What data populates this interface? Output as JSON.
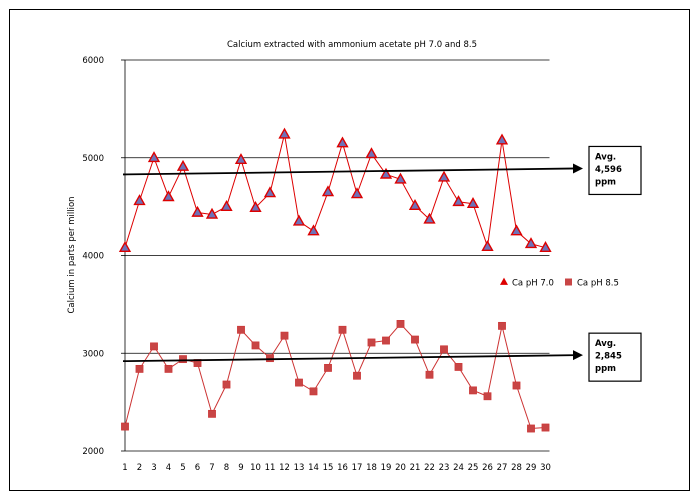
{
  "chart_data": {
    "type": "line",
    "title": "Calcium  extracted with ammonium acetate pH 7.0 and 8.5",
    "xlabel": "",
    "ylabel": "Calcium in parts per million",
    "ylim": [
      2000,
      6000
    ],
    "yticks": [
      2000,
      3000,
      4000,
      5000,
      6000
    ],
    "grid": "horizontal",
    "legend": "right",
    "x": [
      1,
      2,
      3,
      4,
      5,
      6,
      7,
      8,
      9,
      10,
      11,
      12,
      13,
      14,
      15,
      16,
      17,
      18,
      19,
      20,
      21,
      22,
      23,
      24,
      25,
      26,
      27,
      28,
      29,
      30
    ],
    "series": [
      {
        "name": "Ca pH 7.0",
        "marker": "triangle",
        "color": "#dd0000",
        "marker_fill": "#6e72b8",
        "values": [
          4080,
          4560,
          5000,
          4600,
          4910,
          4440,
          4420,
          4500,
          4980,
          4490,
          4640,
          5240,
          4350,
          4250,
          4650,
          5150,
          4630,
          5040,
          4830,
          4780,
          4510,
          4370,
          4800,
          4550,
          4530,
          4090,
          5180,
          4250,
          4120,
          4080
        ]
      },
      {
        "name": "Ca pH 8.5",
        "marker": "square",
        "color": "#cc3333",
        "marker_fill": "#c84545",
        "values": [
          2250,
          2840,
          3070,
          2840,
          2940,
          2900,
          2380,
          2680,
          3240,
          3080,
          2950,
          3180,
          2700,
          2610,
          2850,
          3240,
          2770,
          3110,
          3130,
          3300,
          3140,
          2780,
          3040,
          2860,
          2620,
          2560,
          3280,
          2670,
          2230,
          2240
        ]
      }
    ],
    "annotations": [
      {
        "name": "avg-ph70",
        "value": 4870,
        "lines": [
          "Avg.",
          "4,596",
          "ppm"
        ]
      },
      {
        "name": "avg-ph85",
        "value": 2960,
        "lines": [
          "Avg.",
          "2,845",
          "ppm"
        ]
      }
    ]
  }
}
